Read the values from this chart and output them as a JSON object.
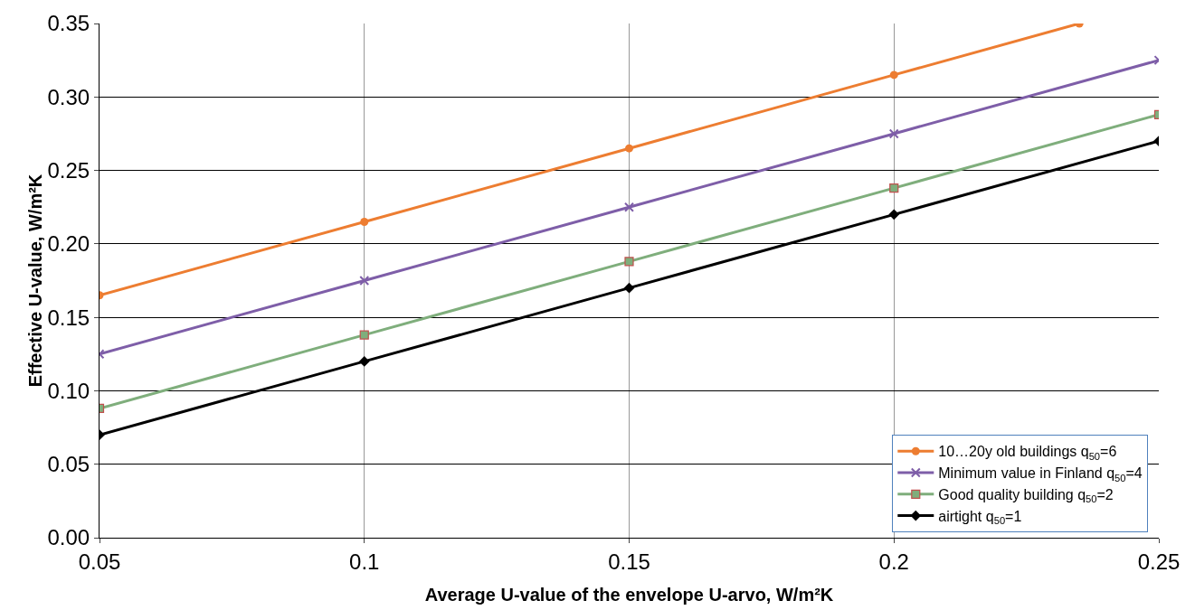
{
  "chart_data": {
    "type": "line",
    "xlabel": "Average U-value of the envelope U-arvo, W/m²K",
    "ylabel": "Effective U-value, W/m²K",
    "x": [
      0.05,
      0.1,
      0.15,
      0.2,
      0.25
    ],
    "series": [
      {
        "name": "10…20y old buildings q$_{50}$=6",
        "color": "#ed7d31",
        "marker": "circle",
        "x": [
          0.05,
          0.1,
          0.15,
          0.2,
          0.235
        ],
        "values": [
          0.165,
          0.215,
          0.265,
          0.315,
          0.35
        ]
      },
      {
        "name": "Minimum value in Finland q$_{50}$=4",
        "color": "#7e5ea8",
        "marker": "cross",
        "values": [
          0.125,
          0.175,
          0.225,
          0.275,
          0.325
        ]
      },
      {
        "name": "Good quality building q$_{50}$=2",
        "color": "#7fae7c",
        "marker": "square",
        "values": [
          0.088,
          0.138,
          0.188,
          0.238,
          0.288
        ]
      },
      {
        "name": "airtight q$_{50}$=1",
        "color": "#000000",
        "marker": "diamond",
        "values": [
          0.07,
          0.12,
          0.17,
          0.22,
          0.27
        ]
      }
    ],
    "xlim": [
      0.05,
      0.25
    ],
    "xticks": [
      0.05,
      0.1,
      0.15,
      0.2,
      0.25
    ],
    "ylim": [
      0,
      0.35
    ],
    "yticks": [
      {
        "value": 0,
        "label": "0.00"
      },
      {
        "value": 0.05,
        "label": "0.05"
      },
      {
        "value": 0.1,
        "label": "0.10"
      },
      {
        "value": 0.15,
        "label": "0.15"
      },
      {
        "value": 0.2,
        "label": "0.20"
      },
      {
        "value": 0.25,
        "label": "0.25"
      },
      {
        "value": 0.3,
        "label": "0.30"
      },
      {
        "value": 0.35,
        "label": "0.35"
      }
    ],
    "grid": true,
    "legend": "bottom right",
    "line_style": "solid"
  }
}
